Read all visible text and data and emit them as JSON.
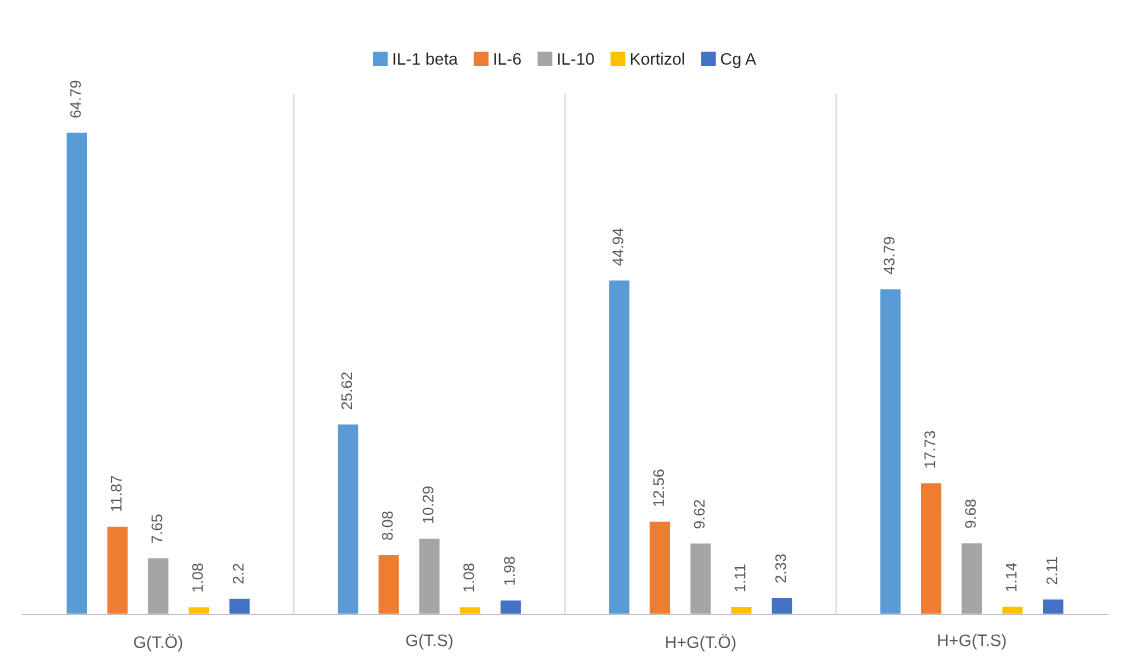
{
  "chart_data": {
    "type": "bar",
    "categories": [
      "G(T.Ö)",
      "G(T.S)",
      "H+G(T.Ö)",
      "H+G(T.S)"
    ],
    "series": [
      {
        "name": "IL-1 beta",
        "color": "#5b9bd5",
        "values": [
          64.79,
          25.62,
          44.94,
          43.79
        ]
      },
      {
        "name": "IL-6",
        "color": "#ed7d31",
        "values": [
          11.87,
          8.08,
          12.56,
          17.73
        ]
      },
      {
        "name": "IL-10",
        "color": "#a5a5a5",
        "values": [
          7.65,
          10.29,
          9.62,
          9.68
        ]
      },
      {
        "name": "Kortizol",
        "color": "#ffc000",
        "values": [
          1.08,
          1.08,
          1.11,
          1.14
        ]
      },
      {
        "name": "Cg A",
        "color": "#4472c4",
        "values": [
          2.2,
          1.98,
          2.33,
          2.11
        ]
      }
    ],
    "data_labels": true,
    "legend": "top",
    "grid": false,
    "tick_labels": "x"
  }
}
